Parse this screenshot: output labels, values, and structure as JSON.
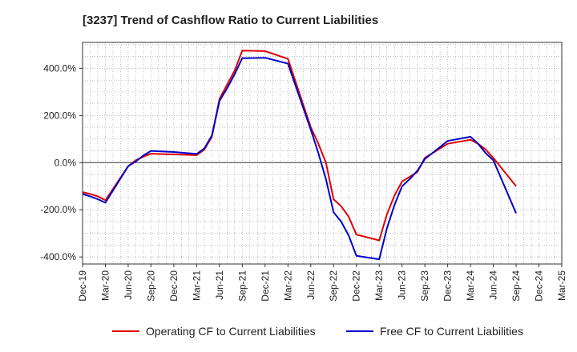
{
  "chart_data": {
    "type": "line",
    "title": "[3237]  Trend of Cashflow Ratio to Current Liabilities",
    "xlabel": "",
    "ylabel": "",
    "ylim": [
      -430,
      510
    ],
    "yticks": [
      -400,
      -200,
      0,
      200,
      400
    ],
    "ytick_labels": [
      "-400.0%",
      "-200.0%",
      "0.0%",
      "200.0%",
      "400.0%"
    ],
    "xlim": [
      "Dec-19",
      "Mar-25"
    ],
    "xtick_labels": [
      "Dec-19",
      "Mar-20",
      "Jun-20",
      "Sep-20",
      "Dec-20",
      "Mar-21",
      "Jun-21",
      "Sep-21",
      "Dec-21",
      "Mar-22",
      "Jun-22",
      "Sep-22",
      "Dec-22",
      "Mar-23",
      "Jun-23",
      "Sep-23",
      "Dec-23",
      "Mar-24",
      "Jun-24",
      "Sep-24",
      "Dec-24",
      "Mar-25"
    ],
    "grid": true,
    "legend_position": "bottom",
    "colors": {
      "operating": "#e00000",
      "free": "#0000cc",
      "grid": "#999999",
      "zero": "#333333"
    },
    "series": [
      {
        "name": "Operating CF to Current Liabilities",
        "color": "#e00000",
        "x": [
          "Dec-19",
          "Jan-20",
          "Feb-20",
          "Mar-20",
          "Jun-20",
          "Jul-20",
          "Aug-20",
          "Sep-20",
          "Dec-20",
          "Mar-21",
          "Apr-21",
          "May-21",
          "Jun-21",
          "Jul-21",
          "Aug-21",
          "Sep-21",
          "Dec-21",
          "Mar-22",
          "Jun-22",
          "Jul-22",
          "Aug-22",
          "Sep-22",
          "Oct-22",
          "Nov-22",
          "Dec-22",
          "Mar-23",
          "Apr-23",
          "May-23",
          "Jun-23",
          "Jul-23",
          "Aug-23",
          "Sep-23",
          "Dec-23",
          "Mar-24",
          "Apr-24",
          "May-24",
          "Jun-24",
          "Sep-24"
        ],
        "values": [
          -125,
          -133,
          -143,
          -160,
          -15,
          10,
          25,
          38,
          35,
          32,
          55,
          110,
          270,
          330,
          390,
          475,
          473,
          440,
          150,
          80,
          0,
          -155,
          -185,
          -230,
          -305,
          -330,
          -220,
          -140,
          -80,
          -60,
          -40,
          20,
          80,
          97,
          80,
          55,
          20,
          -100
        ]
      },
      {
        "name": "Free CF to Current Liabilities",
        "color": "#0000cc",
        "x": [
          "Dec-19",
          "Jan-20",
          "Feb-20",
          "Mar-20",
          "Jun-20",
          "Jul-20",
          "Aug-20",
          "Sep-20",
          "Dec-20",
          "Mar-21",
          "Apr-21",
          "May-21",
          "Jun-21",
          "Jul-21",
          "Aug-21",
          "Sep-21",
          "Dec-21",
          "Mar-22",
          "Jun-22",
          "Jul-22",
          "Aug-22",
          "Sep-22",
          "Oct-22",
          "Nov-22",
          "Dec-22",
          "Mar-23",
          "Apr-23",
          "May-23",
          "Jun-23",
          "Jul-23",
          "Aug-23",
          "Sep-23",
          "Dec-23",
          "Mar-24",
          "Apr-24",
          "May-24",
          "Jun-24",
          "Sep-24"
        ],
        "values": [
          -133,
          -143,
          -155,
          -170,
          -15,
          5,
          30,
          50,
          45,
          37,
          60,
          115,
          262,
          315,
          375,
          443,
          445,
          420,
          140,
          40,
          -70,
          -210,
          -250,
          -310,
          -395,
          -410,
          -280,
          -180,
          -100,
          -70,
          -35,
          15,
          92,
          110,
          80,
          40,
          10,
          -215
        ]
      }
    ]
  }
}
